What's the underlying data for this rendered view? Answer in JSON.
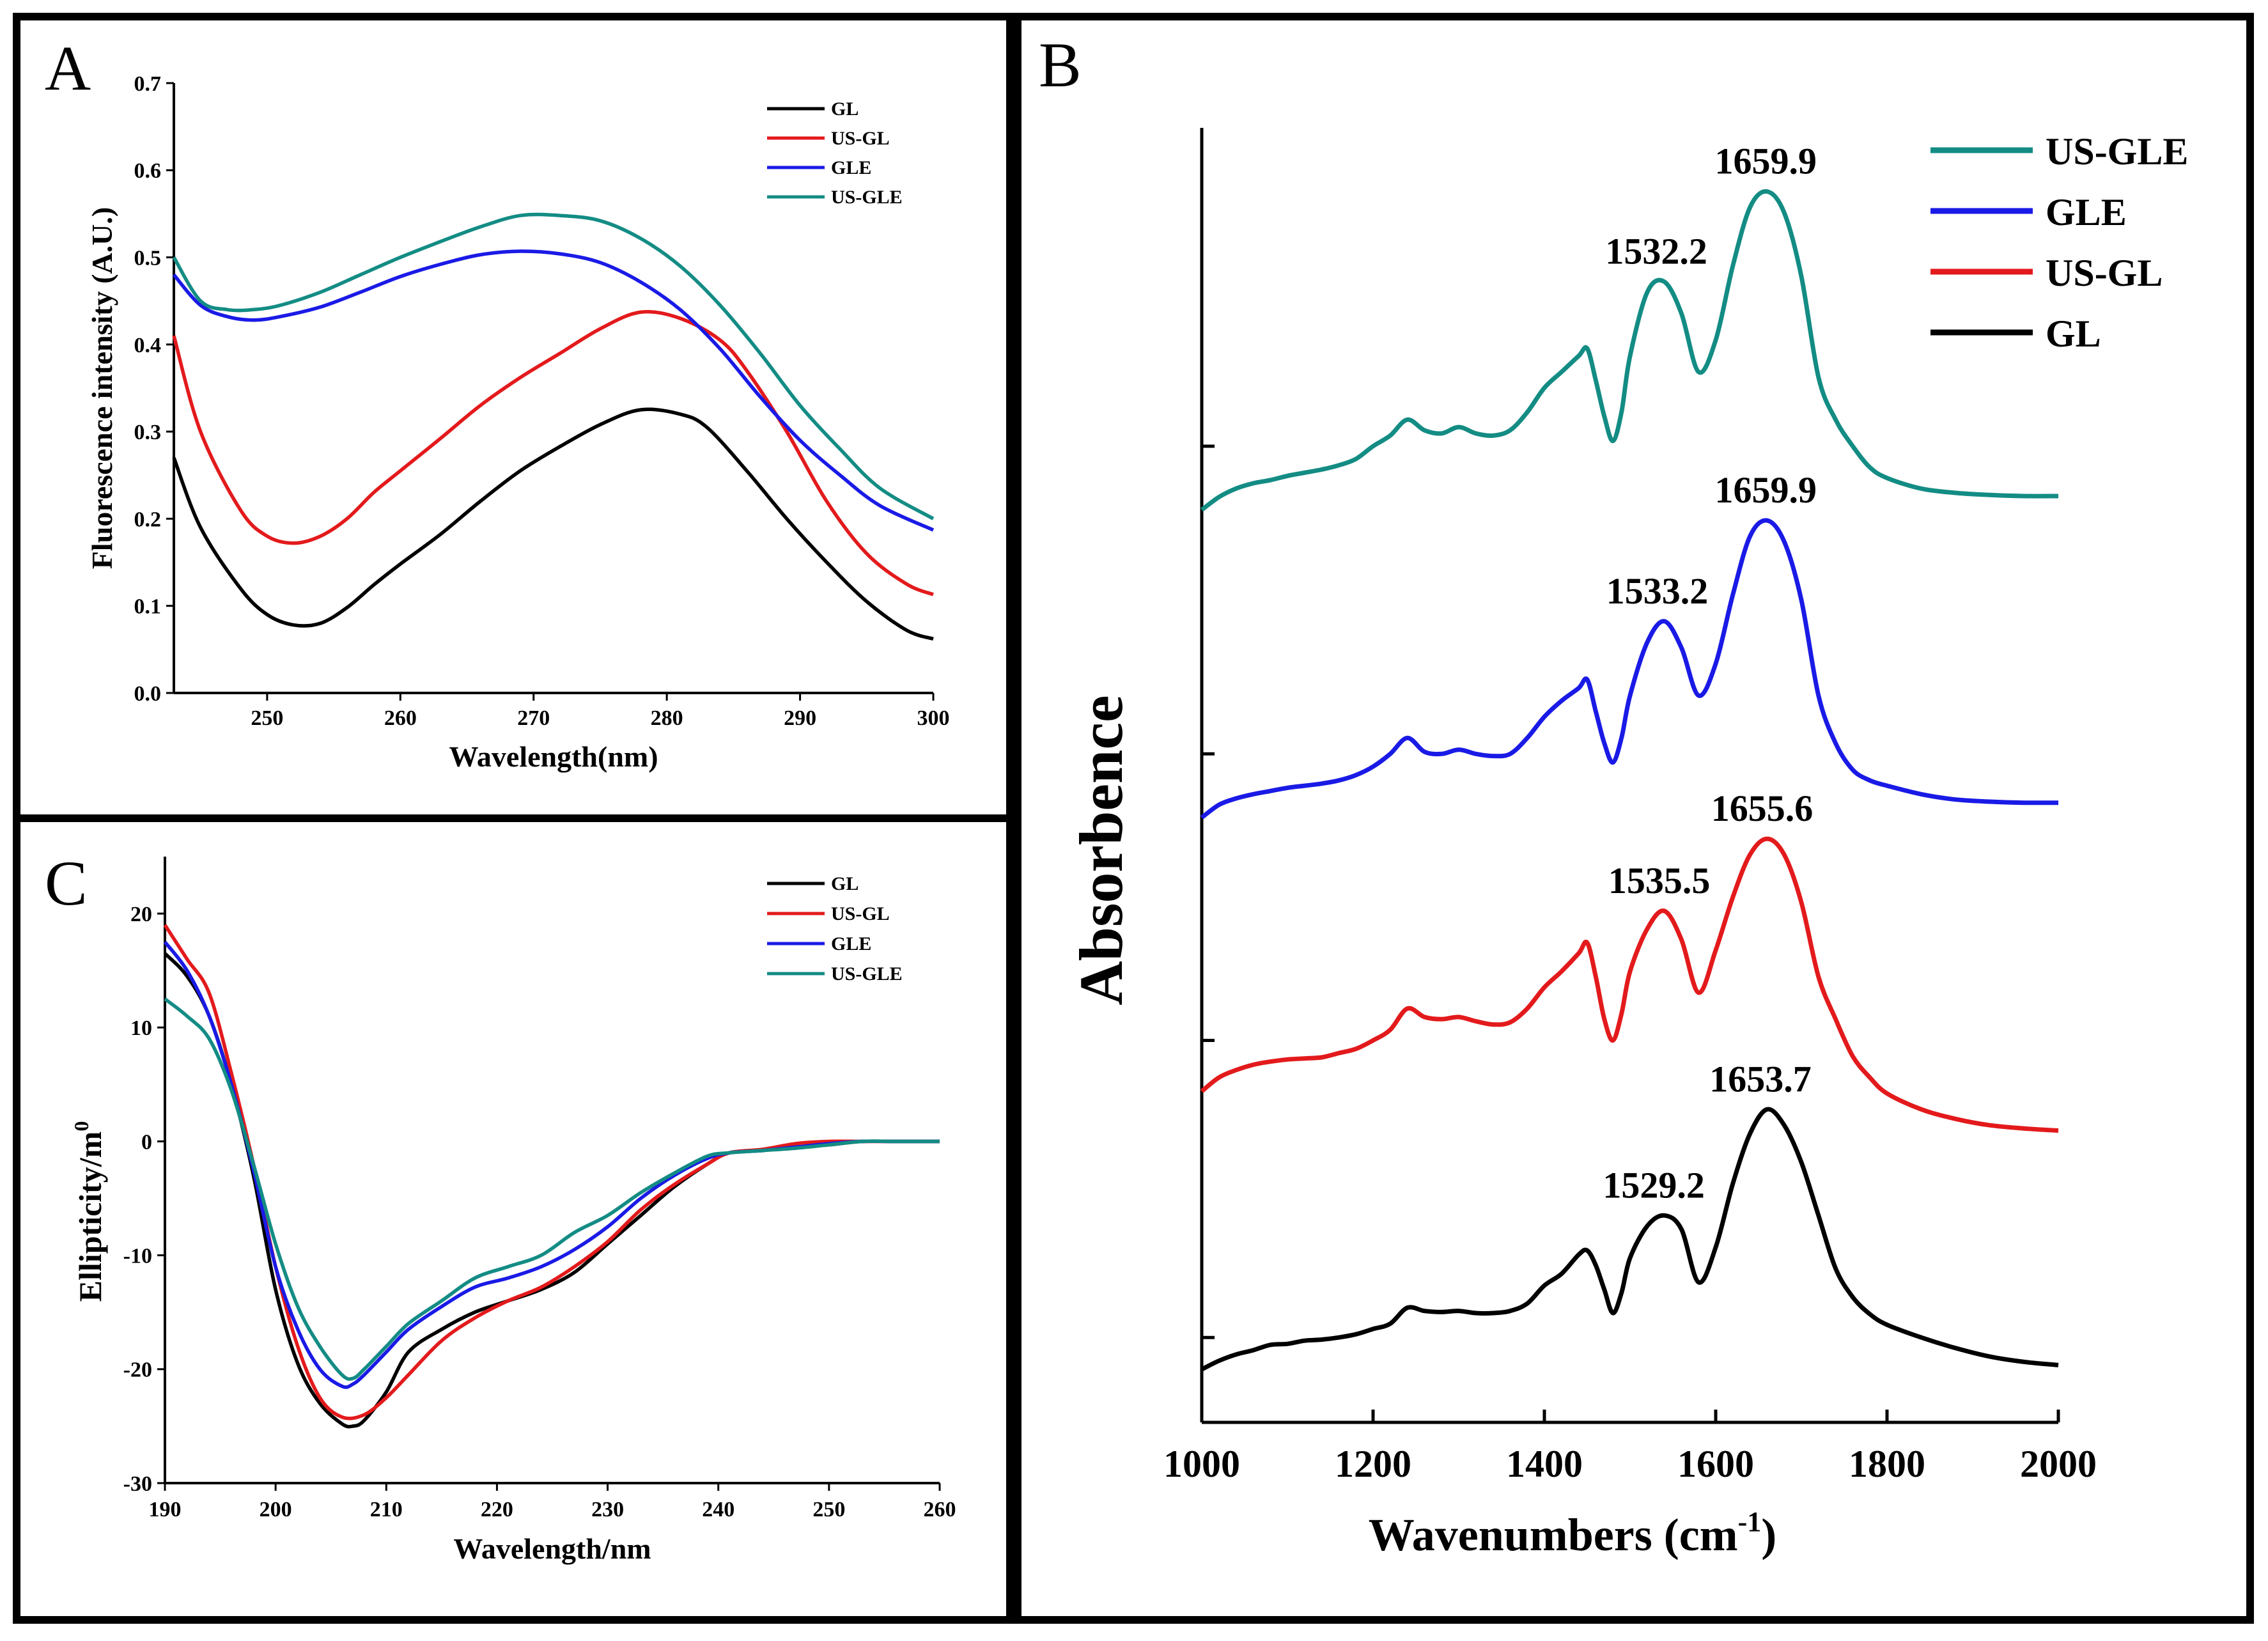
{
  "colors": {
    "GL": "#000000",
    "US-GL": "#e31a1c",
    "GLE": "#1a1ae6",
    "US-GLE": "#138c84"
  },
  "chart_data": [
    {
      "panel": "A",
      "type": "line",
      "title": "",
      "xlabel": "Wavelength(nm)",
      "ylabel": "Fluorescence intensity (A.U.)",
      "xlim": [
        243,
        300
      ],
      "ylim": [
        0.0,
        0.7
      ],
      "xticks": [
        250,
        260,
        270,
        280,
        290,
        300
      ],
      "yticks": [
        0.0,
        0.1,
        0.2,
        0.3,
        0.4,
        0.5,
        0.6,
        0.7
      ],
      "ytick_labels": [
        "0.0",
        "0.1",
        "0.2",
        "0.3",
        "0.4",
        "0.5",
        "0.6",
        "0.7"
      ],
      "legend": [
        "GL",
        "US-GL",
        "GLE",
        "US-GLE"
      ],
      "legend_position": "top-right",
      "series": [
        {
          "name": "GL",
          "x": [
            243,
            245,
            248,
            250,
            252,
            254,
            256,
            258,
            260,
            263,
            266,
            269,
            272,
            275,
            278,
            281,
            283,
            286,
            289,
            292,
            295,
            298,
            300
          ],
          "values": [
            0.27,
            0.19,
            0.12,
            0.09,
            0.078,
            0.08,
            0.098,
            0.124,
            0.148,
            0.182,
            0.22,
            0.255,
            0.283,
            0.308,
            0.325,
            0.32,
            0.305,
            0.255,
            0.2,
            0.15,
            0.105,
            0.072,
            0.062
          ]
        },
        {
          "name": "US-GL",
          "x": [
            243,
            245,
            248,
            250,
            252,
            254,
            256,
            258,
            260,
            263,
            266,
            269,
            272,
            275,
            278,
            281,
            284,
            286,
            289,
            292,
            295,
            298,
            300
          ],
          "values": [
            0.41,
            0.3,
            0.21,
            0.18,
            0.172,
            0.18,
            0.2,
            0.23,
            0.255,
            0.292,
            0.33,
            0.362,
            0.39,
            0.418,
            0.437,
            0.43,
            0.405,
            0.37,
            0.3,
            0.22,
            0.16,
            0.125,
            0.113
          ]
        },
        {
          "name": "GLE",
          "x": [
            243,
            245,
            247,
            249,
            251,
            254,
            257,
            260,
            263,
            266,
            269,
            272,
            275,
            278,
            281,
            284,
            287,
            290,
            293,
            296,
            300
          ],
          "values": [
            0.48,
            0.445,
            0.432,
            0.428,
            0.432,
            0.443,
            0.46,
            0.478,
            0.492,
            0.503,
            0.507,
            0.504,
            0.494,
            0.472,
            0.44,
            0.395,
            0.34,
            0.29,
            0.25,
            0.215,
            0.187
          ]
        },
        {
          "name": "US-GLE",
          "x": [
            243,
            245,
            247,
            249,
            251,
            254,
            257,
            260,
            263,
            266,
            269,
            272,
            275,
            278,
            281,
            284,
            287,
            290,
            293,
            296,
            300
          ],
          "values": [
            0.5,
            0.45,
            0.44,
            0.44,
            0.445,
            0.46,
            0.48,
            0.5,
            0.518,
            0.535,
            0.548,
            0.548,
            0.542,
            0.522,
            0.49,
            0.445,
            0.39,
            0.33,
            0.28,
            0.235,
            0.2
          ]
        }
      ]
    },
    {
      "panel": "B",
      "type": "line",
      "title": "",
      "xlabel": "Wavenumbers (cm-1)",
      "ylabel": "Absorbence",
      "xlim": [
        1000,
        2000
      ],
      "xticks": [
        1000,
        1200,
        1400,
        1600,
        1800,
        2000
      ],
      "legend": [
        "US-GLE",
        "GLE",
        "US-GL",
        "GL"
      ],
      "legend_position": "top-right",
      "annotations": [
        {
          "text": "1659.9",
          "series": "US-GLE",
          "x": 1659.9
        },
        {
          "text": "1532.2",
          "series": "US-GLE",
          "x": 1532.2
        },
        {
          "text": "1659.9",
          "series": "GLE",
          "x": 1659.9
        },
        {
          "text": "1533.2",
          "series": "GLE",
          "x": 1533.2
        },
        {
          "text": "1655.6",
          "series": "US-GL",
          "x": 1655.6
        },
        {
          "text": "1535.5",
          "series": "US-GL",
          "x": 1535.5
        },
        {
          "text": "1653.7",
          "series": "GL",
          "x": 1653.7
        },
        {
          "text": "1529.2",
          "series": "GL",
          "x": 1529.2
        }
      ],
      "series": [
        {
          "name": "GL",
          "offset": 0.0,
          "x": [
            1000,
            1020,
            1040,
            1060,
            1080,
            1100,
            1120,
            1140,
            1160,
            1180,
            1200,
            1220,
            1240,
            1260,
            1280,
            1300,
            1320,
            1340,
            1360,
            1380,
            1400,
            1420,
            1440,
            1450,
            1460,
            1470,
            1480,
            1490,
            1500,
            1520,
            1540,
            1560,
            1580,
            1600,
            1620,
            1640,
            1660,
            1680,
            1700,
            1720,
            1740,
            1760,
            1780,
            1800,
            1840,
            1880,
            1920,
            1960,
            2000
          ],
          "values": [
            0.0,
            0.08,
            0.14,
            0.18,
            0.23,
            0.24,
            0.27,
            0.28,
            0.3,
            0.33,
            0.38,
            0.43,
            0.58,
            0.55,
            0.54,
            0.55,
            0.53,
            0.53,
            0.55,
            0.62,
            0.79,
            0.9,
            1.08,
            1.12,
            0.98,
            0.75,
            0.53,
            0.72,
            1.05,
            1.35,
            1.45,
            1.32,
            0.82,
            1.15,
            1.75,
            2.22,
            2.45,
            2.3,
            1.95,
            1.45,
            0.95,
            0.68,
            0.52,
            0.42,
            0.3,
            0.2,
            0.12,
            0.07,
            0.04
          ]
        },
        {
          "name": "US-GL",
          "offset": 0.0,
          "x": [
            1000,
            1020,
            1040,
            1060,
            1080,
            1100,
            1120,
            1140,
            1160,
            1180,
            1200,
            1220,
            1240,
            1260,
            1280,
            1300,
            1320,
            1340,
            1360,
            1380,
            1400,
            1420,
            1440,
            1450,
            1460,
            1470,
            1480,
            1490,
            1500,
            1520,
            1540,
            1560,
            1580,
            1600,
            1620,
            1640,
            1660,
            1680,
            1700,
            1720,
            1740,
            1760,
            1780,
            1800,
            1840,
            1880,
            1920,
            1960,
            2000
          ],
          "values": [
            2.62,
            2.75,
            2.82,
            2.87,
            2.9,
            2.92,
            2.93,
            2.94,
            2.98,
            3.02,
            3.1,
            3.2,
            3.4,
            3.32,
            3.3,
            3.32,
            3.28,
            3.25,
            3.27,
            3.4,
            3.6,
            3.75,
            3.92,
            4.02,
            3.7,
            3.3,
            3.1,
            3.35,
            3.75,
            4.15,
            4.32,
            4.05,
            3.55,
            3.95,
            4.45,
            4.85,
            5.0,
            4.85,
            4.4,
            3.7,
            3.3,
            2.95,
            2.75,
            2.6,
            2.45,
            2.36,
            2.3,
            2.27,
            2.25
          ]
        },
        {
          "name": "GLE",
          "offset": 0.0,
          "x": [
            1000,
            1020,
            1040,
            1060,
            1080,
            1100,
            1120,
            1140,
            1160,
            1180,
            1200,
            1220,
            1240,
            1260,
            1280,
            1300,
            1320,
            1340,
            1360,
            1380,
            1400,
            1420,
            1440,
            1450,
            1460,
            1470,
            1480,
            1490,
            1500,
            1520,
            1540,
            1560,
            1580,
            1600,
            1620,
            1640,
            1660,
            1680,
            1700,
            1720,
            1740,
            1760,
            1780,
            1800,
            1840,
            1880,
            1920,
            1960,
            2000
          ],
          "values": [
            5.2,
            5.32,
            5.38,
            5.42,
            5.45,
            5.48,
            5.5,
            5.52,
            5.55,
            5.6,
            5.68,
            5.8,
            5.95,
            5.82,
            5.8,
            5.84,
            5.8,
            5.78,
            5.8,
            5.95,
            6.15,
            6.3,
            6.42,
            6.5,
            6.2,
            5.9,
            5.72,
            5.95,
            6.35,
            6.85,
            7.05,
            6.8,
            6.35,
            6.65,
            7.3,
            7.85,
            8.0,
            7.8,
            7.25,
            6.35,
            5.9,
            5.65,
            5.55,
            5.5,
            5.42,
            5.37,
            5.35,
            5.34,
            5.34
          ]
        },
        {
          "name": "US-GLE",
          "offset": 0.0,
          "x": [
            1000,
            1020,
            1040,
            1060,
            1080,
            1100,
            1120,
            1140,
            1160,
            1180,
            1200,
            1220,
            1240,
            1260,
            1280,
            1300,
            1320,
            1340,
            1360,
            1380,
            1400,
            1420,
            1440,
            1450,
            1460,
            1470,
            1480,
            1490,
            1500,
            1520,
            1540,
            1560,
            1580,
            1600,
            1620,
            1640,
            1660,
            1680,
            1700,
            1720,
            1740,
            1760,
            1780,
            1800,
            1840,
            1880,
            1920,
            1960,
            2000
          ],
          "values": [
            8.1,
            8.22,
            8.3,
            8.35,
            8.38,
            8.42,
            8.45,
            8.48,
            8.52,
            8.58,
            8.7,
            8.8,
            8.95,
            8.85,
            8.82,
            8.88,
            8.82,
            8.8,
            8.85,
            9.02,
            9.25,
            9.4,
            9.55,
            9.62,
            9.32,
            8.98,
            8.75,
            9.02,
            9.55,
            10.15,
            10.25,
            9.95,
            9.4,
            9.7,
            10.4,
            10.95,
            11.1,
            10.9,
            10.3,
            9.35,
            8.95,
            8.7,
            8.5,
            8.4,
            8.3,
            8.26,
            8.24,
            8.23,
            8.23
          ]
        }
      ]
    },
    {
      "panel": "C",
      "type": "line",
      "title": "",
      "xlabel": "Wavelength/nm",
      "ylabel": "Ellipticity/m0",
      "xlim": [
        190,
        260
      ],
      "ylim": [
        -30,
        25
      ],
      "xticks": [
        190,
        200,
        210,
        220,
        230,
        240,
        250,
        260
      ],
      "yticks": [
        -30,
        -20,
        -10,
        0,
        10,
        20
      ],
      "legend": [
        "GL",
        "US-GL",
        "GLE",
        "US-GLE"
      ],
      "legend_position": "top-right",
      "series": [
        {
          "name": "GL",
          "x": [
            190,
            192,
            194,
            196,
            198,
            200,
            202,
            204,
            206,
            207,
            208,
            210,
            212,
            215,
            218,
            221,
            224,
            227,
            230,
            233,
            236,
            239,
            241,
            244,
            247,
            250,
            253,
            256,
            260
          ],
          "values": [
            16.5,
            14.5,
            11,
            5,
            -3,
            -13,
            -19.5,
            -23,
            -24.8,
            -25,
            -24.5,
            -22,
            -18.5,
            -16.5,
            -15,
            -14,
            -13,
            -11.5,
            -9,
            -6.5,
            -4,
            -2,
            -1,
            -0.8,
            -0.5,
            -0.3,
            0,
            0,
            0
          ]
        },
        {
          "name": "US-GL",
          "x": [
            190,
            192,
            194,
            196,
            198,
            200,
            202,
            204,
            206,
            208,
            210,
            212,
            215,
            218,
            221,
            224,
            227,
            230,
            233,
            236,
            239,
            241,
            244,
            247,
            250,
            253,
            256,
            260
          ],
          "values": [
            19,
            16,
            13,
            6,
            -2,
            -11,
            -18,
            -22.5,
            -24.2,
            -24,
            -22.5,
            -20.5,
            -17.5,
            -15.5,
            -14,
            -12.8,
            -11,
            -8.8,
            -6,
            -3.8,
            -2,
            -1,
            -0.7,
            -0.2,
            0,
            0,
            0,
            0
          ]
        },
        {
          "name": "GLE",
          "x": [
            190,
            192,
            194,
            196,
            198,
            200,
            202,
            204,
            206,
            207,
            208,
            210,
            212,
            215,
            218,
            221,
            224,
            227,
            230,
            233,
            236,
            239,
            241,
            244,
            247,
            250,
            253,
            256,
            260
          ],
          "values": [
            17.5,
            15,
            11,
            5,
            -2.5,
            -11,
            -16.5,
            -20,
            -21.5,
            -21.3,
            -20.5,
            -18.5,
            -16.5,
            -14.5,
            -12.8,
            -12,
            -11,
            -9.5,
            -7.5,
            -5,
            -3,
            -1.5,
            -1,
            -0.8,
            -0.5,
            -0.2,
            0,
            0,
            0
          ]
        },
        {
          "name": "US-GLE",
          "x": [
            190,
            192,
            194,
            196,
            198,
            200,
            202,
            204,
            206,
            207,
            208,
            210,
            212,
            215,
            218,
            221,
            224,
            227,
            230,
            233,
            236,
            239,
            241,
            244,
            247,
            250,
            253,
            256,
            260
          ],
          "values": [
            12.5,
            11,
            9,
            4.5,
            -2,
            -9,
            -14.5,
            -18,
            -20.5,
            -20.8,
            -20,
            -18,
            -16,
            -14,
            -12,
            -11,
            -10,
            -8,
            -6.5,
            -4.5,
            -2.8,
            -1.3,
            -1,
            -0.8,
            -0.6,
            -0.3,
            0,
            0,
            0
          ]
        }
      ]
    }
  ],
  "panels": {
    "A": {
      "letter": "A"
    },
    "B": {
      "letter": "B",
      "ylabel": "Absorbence",
      "xlabel_main": "Wavenumbers (cm",
      "xlabel_sup": "-1",
      "xlabel_end": ")"
    },
    "C": {
      "letter": "C",
      "ylabel_main": "Ellipticity/m",
      "ylabel_sup": "0"
    }
  }
}
